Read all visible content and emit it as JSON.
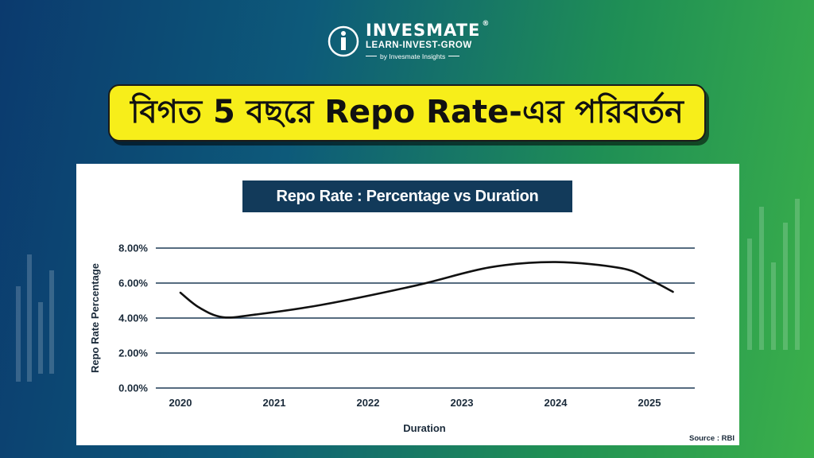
{
  "brand": {
    "name": "INVESMATE",
    "registered": "®",
    "tagline": "LEARN-INVEST-GROW",
    "byline": "by Invesmate Insights"
  },
  "headline": "বিগত 5 বছরে Repo Rate-এর পরিবর্তন",
  "chart_data": {
    "type": "line",
    "title": "Repo Rate : Percentage vs Duration",
    "xlabel": "Duration",
    "ylabel": "Repo Rate Percentage",
    "x_ticks": [
      "2020",
      "2021",
      "2022",
      "2023",
      "2024",
      "2025"
    ],
    "y_ticks": [
      "0.00%",
      "2.00%",
      "4.00%",
      "6.00%",
      "8.00%"
    ],
    "ylim": [
      0,
      8
    ],
    "xlim": [
      2020,
      2025
    ],
    "grid": "horizontal",
    "series": [
      {
        "color": "#111111",
        "points": [
          {
            "x": 2020.0,
            "y": 5.45
          },
          {
            "x": 2020.2,
            "y": 4.6
          },
          {
            "x": 2020.45,
            "y": 4.05
          },
          {
            "x": 2020.8,
            "y": 4.2
          },
          {
            "x": 2021.5,
            "y": 4.75
          },
          {
            "x": 2022.5,
            "y": 5.85
          },
          {
            "x": 2023.3,
            "y": 6.9
          },
          {
            "x": 2024.0,
            "y": 7.2
          },
          {
            "x": 2024.7,
            "y": 6.85
          },
          {
            "x": 2025.0,
            "y": 6.2
          },
          {
            "x": 2025.25,
            "y": 5.5
          }
        ]
      }
    ],
    "source": "Source : RBI",
    "colors": {
      "grid": "#1f3b57",
      "title_bg": "#123a5a",
      "headline_bg": "#f7ee1a"
    }
  }
}
